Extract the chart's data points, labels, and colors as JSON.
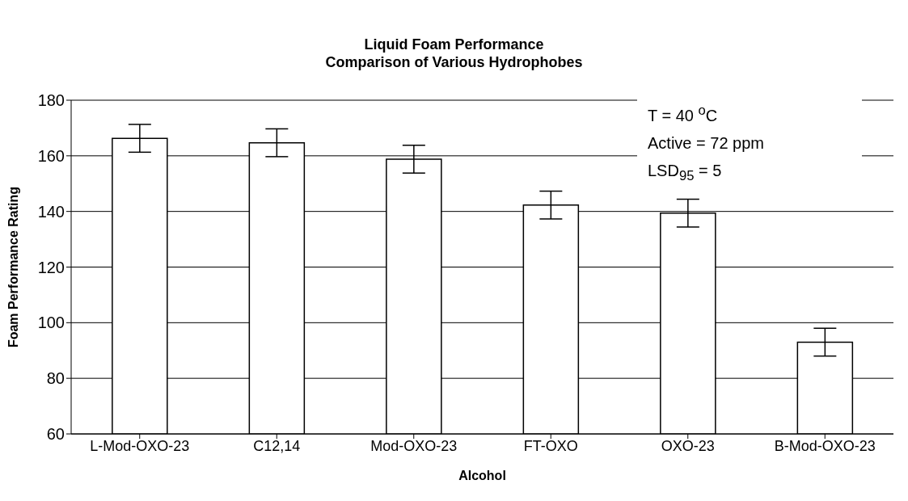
{
  "chart_data": {
    "type": "bar",
    "title": "Liquid Foam Performance",
    "subtitle": "Comparison of Various Hydrophobes",
    "xlabel": "Alcohol",
    "ylabel": "Foam Performance Rating",
    "categories": [
      "L-Mod-OXO-23",
      "C12,14",
      "Mod-OXO-23",
      "FT-OXO",
      "OXO-23",
      "B-Mod-OXO-23"
    ],
    "values": [
      166.3,
      164.7,
      158.8,
      142.3,
      139.4,
      93.0
    ],
    "errors": [
      5,
      5,
      5,
      5,
      5,
      5
    ],
    "color": "#ffffff",
    "ylim": [
      60,
      180
    ],
    "yticks": [
      60,
      80,
      100,
      120,
      140,
      160,
      180
    ],
    "grid": "y",
    "annotations": [
      "T = 40 $^{o}$C",
      "Active = 72 ppm",
      "LSD$_{95}$ = 5"
    ]
  }
}
